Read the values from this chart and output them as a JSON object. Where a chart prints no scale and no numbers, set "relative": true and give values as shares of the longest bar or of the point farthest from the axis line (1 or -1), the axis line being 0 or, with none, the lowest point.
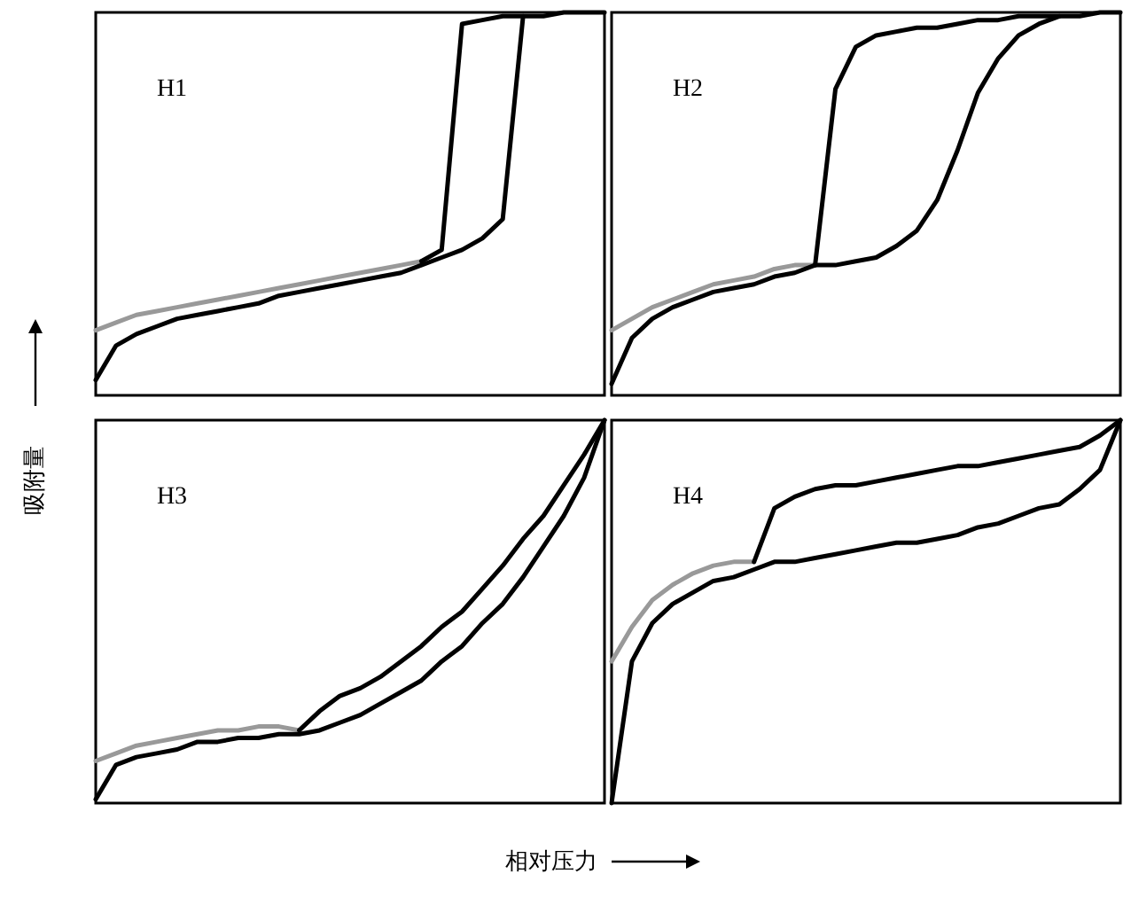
{
  "chart_data": [
    {
      "type": "line",
      "title": "H1",
      "ylabel": "吸附量",
      "relative": true,
      "categories": [
        null,
        null,
        null,
        null,
        null,
        null,
        null,
        null,
        null,
        null,
        null,
        null,
        null,
        null,
        null,
        null,
        null,
        null,
        null,
        null,
        null,
        null,
        null,
        null,
        null,
        null
      ],
      "series": [
        {
          "color": "#999999",
          "values": [
            0.17,
            0.19,
            0.21,
            0.22,
            0.23,
            0.24,
            0.25,
            0.26,
            0.27,
            0.28,
            0.29,
            0.3,
            0.31,
            0.32,
            0.33,
            0.34,
            0.35,
            null,
            null,
            null,
            null,
            null,
            null,
            null,
            null,
            null
          ]
        },
        {
          "color": "#000000",
          "values": [
            0.04,
            0.13,
            0.16,
            0.18,
            0.2,
            0.21,
            0.22,
            0.23,
            0.24,
            0.26,
            0.27,
            0.28,
            0.29,
            0.3,
            0.31,
            0.32,
            0.34,
            0.36,
            0.38,
            0.41,
            0.46,
            0.99,
            0.99,
            1,
            1,
            1
          ]
        },
        {
          "color": "#000000",
          "values": [
            null,
            null,
            null,
            null,
            null,
            null,
            null,
            null,
            null,
            null,
            null,
            null,
            null,
            null,
            null,
            null,
            0.35,
            0.38,
            0.97,
            0.98,
            0.99,
            0.99,
            null,
            null,
            null,
            null
          ]
        }
      ]
    },
    {
      "type": "line",
      "title": "H2",
      "relative": true,
      "categories": [
        null,
        null,
        null,
        null,
        null,
        null,
        null,
        null,
        null,
        null,
        null,
        null,
        null,
        null,
        null,
        null,
        null,
        null,
        null,
        null,
        null,
        null,
        null,
        null,
        null,
        null
      ],
      "series": [
        {
          "color": "#999999",
          "values": [
            0.17,
            0.2,
            0.23,
            0.25,
            0.27,
            0.29,
            0.3,
            0.31,
            0.33,
            0.34,
            0.34,
            null,
            null,
            null,
            null,
            null,
            null,
            null,
            null,
            null,
            null,
            null,
            null,
            null,
            null,
            null
          ]
        },
        {
          "color": "#000000",
          "values": [
            0.03,
            0.15,
            0.2,
            0.23,
            0.25,
            0.27,
            0.28,
            0.29,
            0.31,
            0.32,
            0.34,
            0.34,
            0.35,
            0.36,
            0.39,
            0.43,
            0.51,
            0.64,
            0.79,
            0.88,
            0.94,
            0.97,
            0.99,
            0.99,
            1,
            1
          ]
        },
        {
          "color": "#000000",
          "values": [
            null,
            null,
            null,
            null,
            null,
            null,
            null,
            null,
            null,
            null,
            0.34,
            0.8,
            0.91,
            0.94,
            0.95,
            0.96,
            0.96,
            0.97,
            0.98,
            0.98,
            0.99,
            0.99,
            0.99,
            null,
            null,
            null
          ]
        }
      ]
    },
    {
      "type": "line",
      "title": "H3",
      "xlabel": "相对压力",
      "relative": true,
      "categories": [
        null,
        null,
        null,
        null,
        null,
        null,
        null,
        null,
        null,
        null,
        null,
        null,
        null,
        null,
        null,
        null,
        null,
        null,
        null,
        null,
        null,
        null,
        null,
        null,
        null,
        null
      ],
      "series": [
        {
          "color": "#999999",
          "values": [
            0.11,
            0.13,
            0.15,
            0.16,
            0.17,
            0.18,
            0.19,
            0.19,
            0.2,
            0.2,
            0.19,
            null,
            null,
            null,
            null,
            null,
            null,
            null,
            null,
            null,
            null,
            null,
            null,
            null,
            null,
            null
          ]
        },
        {
          "color": "#000000",
          "values": [
            0.01,
            0.1,
            0.12,
            0.13,
            0.14,
            0.16,
            0.16,
            0.17,
            0.17,
            0.18,
            0.18,
            0.19,
            0.21,
            0.23,
            0.26,
            0.29,
            0.32,
            0.37,
            0.41,
            0.47,
            0.52,
            0.59,
            0.67,
            0.75,
            0.85,
            1
          ]
        },
        {
          "color": "#000000",
          "values": [
            null,
            null,
            null,
            null,
            null,
            null,
            null,
            null,
            null,
            null,
            0.19,
            0.24,
            0.28,
            0.3,
            0.33,
            0.37,
            0.41,
            0.46,
            0.5,
            0.56,
            0.62,
            0.69,
            0.75,
            0.83,
            0.91,
            1
          ]
        }
      ]
    },
    {
      "type": "line",
      "title": "H4",
      "relative": true,
      "categories": [
        null,
        null,
        null,
        null,
        null,
        null,
        null,
        null,
        null,
        null,
        null,
        null,
        null,
        null,
        null,
        null,
        null,
        null,
        null,
        null,
        null,
        null,
        null,
        null,
        null,
        null
      ],
      "series": [
        {
          "color": "#999999",
          "values": [
            0.37,
            0.46,
            0.53,
            0.57,
            0.6,
            0.62,
            0.63,
            0.63,
            null,
            null,
            null,
            null,
            null,
            null,
            null,
            null,
            null,
            null,
            null,
            null,
            null,
            null,
            null,
            null,
            null,
            null
          ]
        },
        {
          "color": "#000000",
          "values": [
            0,
            0.37,
            0.47,
            0.52,
            0.55,
            0.58,
            0.59,
            0.61,
            0.63,
            0.63,
            0.64,
            0.65,
            0.66,
            0.67,
            0.68,
            0.68,
            0.69,
            0.7,
            0.72,
            0.73,
            0.75,
            0.77,
            0.78,
            0.82,
            0.87,
            1
          ]
        },
        {
          "color": "#000000",
          "values": [
            null,
            null,
            null,
            null,
            null,
            null,
            null,
            0.63,
            0.77,
            0.8,
            0.82,
            0.83,
            0.83,
            0.84,
            0.85,
            0.86,
            0.87,
            0.88,
            0.88,
            0.89,
            0.9,
            0.91,
            0.92,
            0.93,
            0.96,
            1
          ]
        }
      ]
    }
  ]
}
